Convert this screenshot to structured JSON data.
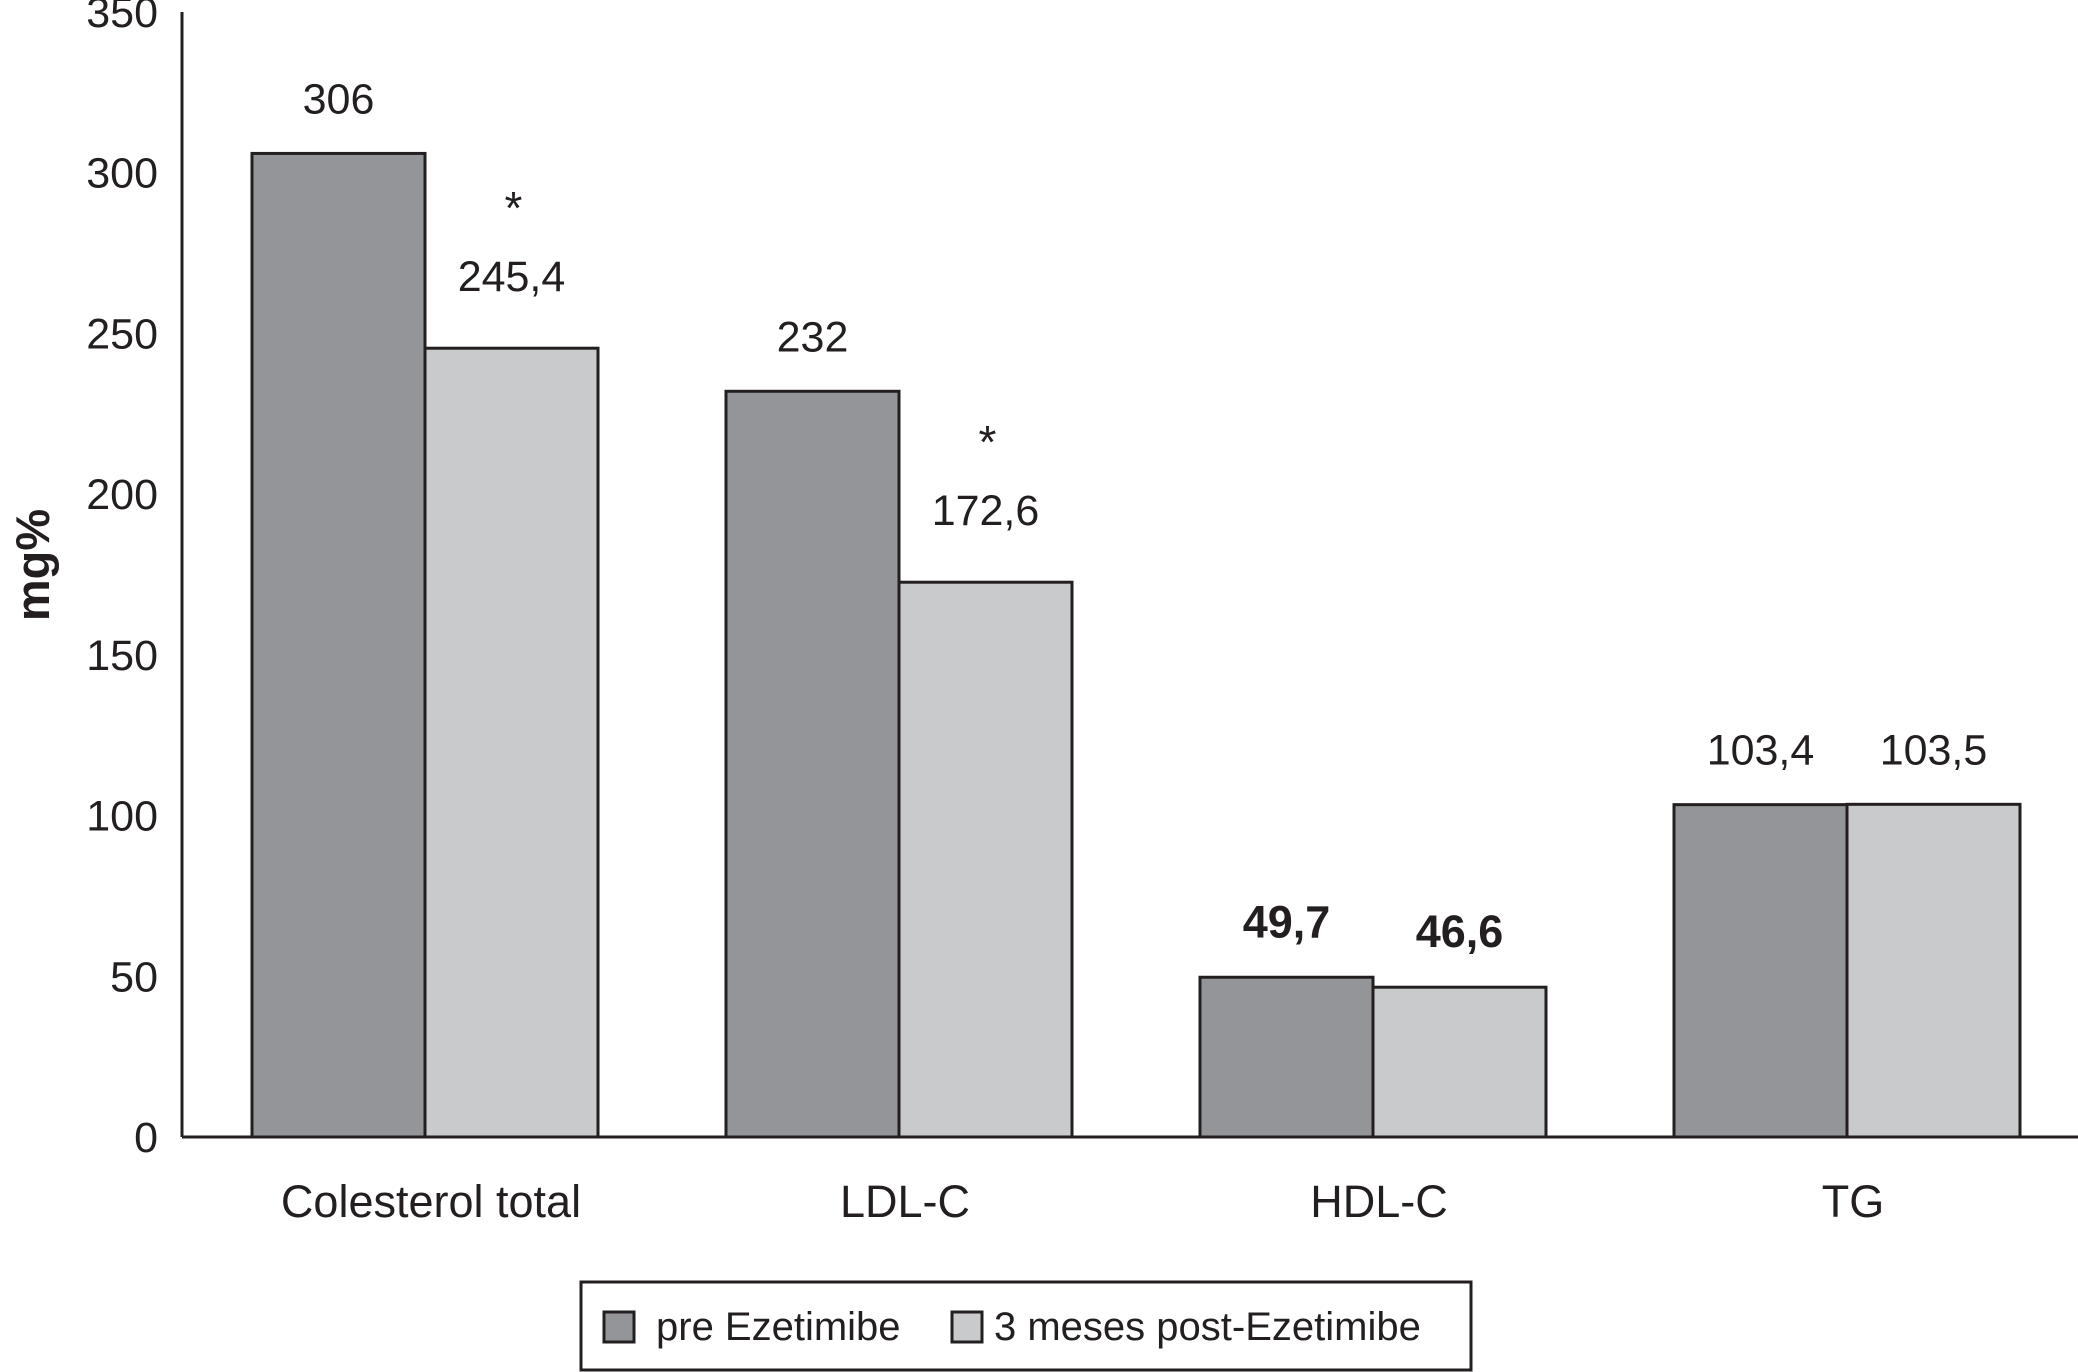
{
  "chart_data": {
    "type": "bar",
    "ylabel": "mg%",
    "ylim": [
      0,
      350
    ],
    "yticks": [
      0,
      50,
      100,
      150,
      200,
      250,
      300,
      350
    ],
    "categories": [
      "Colesterol total",
      "LDL-C",
      "HDL-C",
      "TG"
    ],
    "series": [
      {
        "name": "pre Ezetimibe",
        "values": [
          306,
          232,
          49.7,
          103.4
        ],
        "labels": [
          "306",
          "232",
          "49,7",
          "103,4"
        ],
        "color": "#939598"
      },
      {
        "name": "3 meses post-Ezetimibe",
        "values": [
          245.4,
          172.6,
          46.6,
          103.5
        ],
        "labels": [
          "245,4",
          "172,6",
          "46,6",
          "103,5"
        ],
        "color": "#c9cacc"
      }
    ],
    "significance_markers": [
      {
        "category": "Colesterol total",
        "series": 1,
        "text": "*"
      },
      {
        "category": "LDL-C",
        "series": 1,
        "text": "*"
      }
    ],
    "bold_labels_category": "HDL-C",
    "legend_position": "bottom",
    "grid": false
  }
}
